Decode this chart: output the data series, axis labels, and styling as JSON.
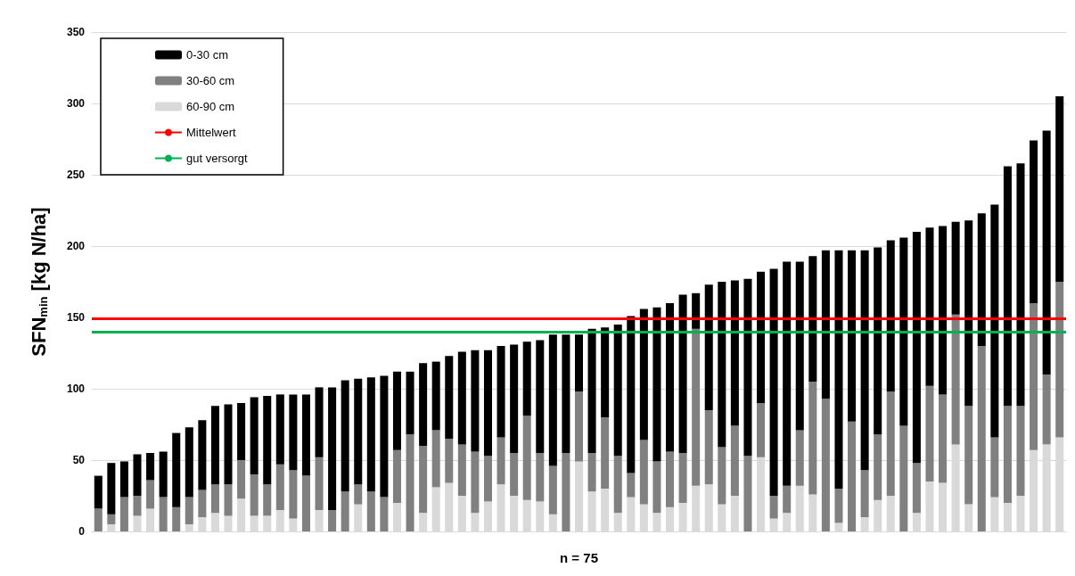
{
  "chart_data": {
    "type": "bar",
    "stacked": true,
    "xlabel": "n = 75",
    "ylabel": "SFN$_{min}$ [kg N/ha]",
    "categories": [
      null,
      null,
      null,
      null,
      null,
      null,
      null,
      null,
      null,
      null,
      null,
      null,
      null,
      null,
      null,
      null,
      null,
      null,
      null,
      null,
      null,
      null,
      null,
      null,
      null,
      null,
      null,
      null,
      null,
      null,
      null,
      null,
      null,
      null,
      null,
      null,
      null,
      null,
      null,
      null,
      null,
      null,
      null,
      null,
      null,
      null,
      null,
      null,
      null,
      null,
      null,
      null,
      null,
      null,
      null,
      null,
      null,
      null,
      null,
      null,
      null,
      null,
      null,
      null,
      null,
      null,
      null,
      null,
      null,
      null,
      null,
      null,
      null,
      null,
      null
    ],
    "series": [
      {
        "name": "60-90 cm",
        "color": "#d9d9d9",
        "values": [
          0,
          5,
          0,
          11,
          16,
          0,
          0,
          5,
          10,
          13,
          11,
          23,
          11,
          11,
          15,
          9,
          0,
          15,
          0,
          0,
          19,
          0,
          0,
          20,
          0,
          13,
          31,
          34,
          25,
          13,
          21,
          33,
          25,
          22,
          21,
          12,
          0,
          49,
          28,
          30,
          13,
          24,
          19,
          13,
          17,
          20,
          32,
          33,
          19,
          25,
          0,
          52,
          9,
          13,
          32,
          26,
          0,
          6,
          0,
          10,
          22,
          25,
          0,
          13,
          35,
          34,
          61,
          19,
          0,
          24,
          20,
          25,
          57,
          61,
          66
        ]
      },
      {
        "name": "30-60 cm",
        "color": "#808080",
        "values": [
          16,
          7,
          24,
          14,
          20,
          24,
          17,
          19,
          19,
          20,
          22,
          27,
          29,
          22,
          32,
          34,
          39,
          37,
          15,
          28,
          14,
          28,
          24,
          37,
          68,
          47,
          40,
          31,
          36,
          43,
          32,
          33,
          30,
          59,
          34,
          34,
          55,
          49,
          27,
          50,
          40,
          17,
          45,
          36,
          39,
          35,
          110,
          52,
          40,
          49,
          53,
          38,
          16,
          19,
          39,
          79,
          93,
          24,
          77,
          33,
          46,
          73,
          74,
          35,
          67,
          62,
          91,
          69,
          130,
          42,
          68,
          63,
          103,
          49,
          109
        ]
      },
      {
        "name": "0-30 cm",
        "color": "#000000",
        "values": [
          23,
          36,
          25,
          29,
          19,
          32,
          52,
          49,
          49,
          55,
          56,
          40,
          54,
          62,
          49,
          53,
          57,
          49,
          86,
          78,
          74,
          80,
          85,
          55,
          44,
          58,
          48,
          58,
          65,
          71,
          74,
          64,
          76,
          52,
          79,
          92,
          83,
          40,
          87,
          63,
          92,
          110,
          92,
          108,
          104,
          111,
          25,
          88,
          116,
          102,
          124,
          92,
          159,
          157,
          118,
          88,
          104,
          167,
          120,
          154,
          131,
          106,
          132,
          162,
          111,
          118,
          65,
          130,
          93,
          163,
          168,
          170,
          114,
          171,
          130
        ]
      }
    ],
    "ylim": [
      0,
      350
    ],
    "yticks": [
      0,
      50,
      100,
      150,
      200,
      250,
      300,
      350
    ],
    "grid": "y",
    "legend": "top left",
    "tick_labels": "y",
    "ref_lines": [
      {
        "axis": "y",
        "value": 149,
        "label": "Mittelwert",
        "color": "#ff0000"
      },
      {
        "axis": "y",
        "value": 140,
        "label": "gut versorgt",
        "color": "#00b050"
      }
    ]
  }
}
